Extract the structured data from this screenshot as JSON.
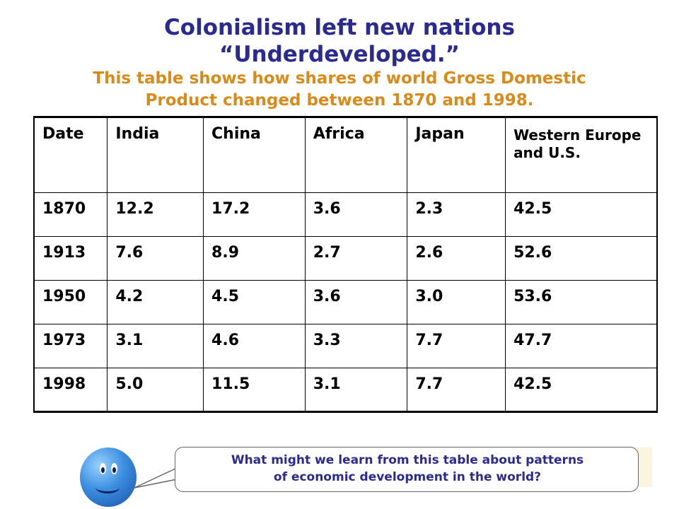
{
  "slide": {
    "title_line1": "Colonialism left new nations",
    "title_line2": "“Underdeveloped.”",
    "subtitle_line1": "This table shows how shares of world Gross Domestic",
    "subtitle_line2": "Product changed between 1870 and 1998."
  },
  "table": {
    "headers": [
      "Date",
      "India",
      "China",
      "Africa",
      "Japan",
      "Western Europe and U.S."
    ],
    "rows": [
      [
        "1870",
        "12.2",
        "17.2",
        "3.6",
        "2.3",
        "42.5"
      ],
      [
        "1913",
        "7.6",
        "8.9",
        "2.7",
        "2.6",
        "52.6"
      ],
      [
        "1950",
        "4.2",
        "4.5",
        "3.6",
        "3.0",
        "53.6"
      ],
      [
        "1973",
        "3.1",
        "4.6",
        "3.3",
        "7.7",
        "47.7"
      ],
      [
        "1998",
        "5.0",
        "11.5",
        "3.1",
        "7.7",
        "42.5"
      ]
    ]
  },
  "bubble": {
    "line1": "What might we learn from this table about patterns",
    "line2": "of economic development in the world?"
  },
  "colors": {
    "title": "#2b2b8f",
    "subtitle": "#d88b1a",
    "bubble_text": "#2b2b8f"
  }
}
